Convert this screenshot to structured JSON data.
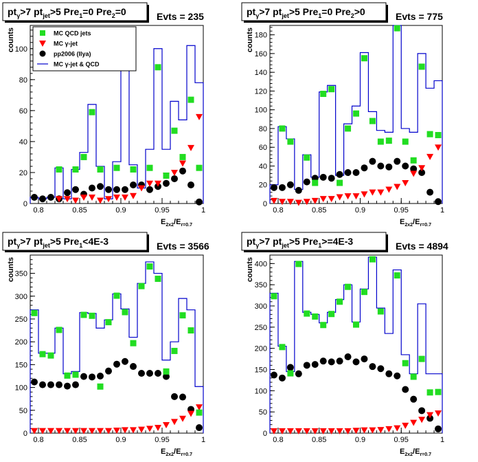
{
  "chart_data": [
    {
      "type": "scatter",
      "title_parts": {
        "pt": "pt",
        "g": "γ",
        "gt": ">7",
        "pt2": "pt",
        "jet": "jet",
        "cut": ">5 Pre",
        "i1": "1",
        "eq1": "=0 Pre",
        "i2": "2",
        "eq2": "=0"
      },
      "evts": "Evts = 235",
      "ylabel": "counts",
      "xlabel": {
        "main": "E",
        "sub1": "2x2",
        "slash": "/E",
        "sub2": "r=0.7"
      },
      "xlim": [
        0.79,
        1.0
      ],
      "ylim": [
        0,
        115
      ],
      "xticks": [
        "0.8",
        "0.85",
        "0.9",
        "0.95",
        "1"
      ],
      "yticks": [
        "0",
        "20",
        "40",
        "60",
        "80",
        "100"
      ],
      "legend": [
        {
          "label": "MC QCD jets"
        },
        {
          "label": "MC γ-jet"
        },
        {
          "label": "pp2006 (Ilya)"
        },
        {
          "label": "MC γ-jet & QCD"
        }
      ],
      "legend_placement": "top-left",
      "bin_edges": [
        0.79,
        0.8,
        0.81,
        0.82,
        0.83,
        0.84,
        0.85,
        0.86,
        0.87,
        0.88,
        0.89,
        0.9,
        0.91,
        0.92,
        0.93,
        0.94,
        0.95,
        0.96,
        0.97,
        0.98,
        0.99,
        1.0
      ],
      "x": [
        0.795,
        0.805,
        0.815,
        0.825,
        0.835,
        0.845,
        0.855,
        0.865,
        0.875,
        0.885,
        0.895,
        0.905,
        0.915,
        0.925,
        0.935,
        0.945,
        0.955,
        0.965,
        0.975,
        0.985,
        0.995
      ],
      "series": [
        {
          "values": [
            0,
            0,
            0,
            22,
            0,
            22,
            30,
            59,
            22,
            0,
            23,
            103,
            22,
            0,
            23,
            88,
            18,
            47,
            30,
            67,
            23
          ]
        },
        {
          "values": [
            0,
            0,
            0,
            3,
            3,
            2,
            4,
            4,
            2,
            3,
            4,
            4,
            5,
            10,
            13,
            13,
            18,
            20,
            26,
            36,
            56
          ]
        },
        {
          "values": [
            4,
            3,
            4,
            3,
            7,
            9,
            6,
            10,
            11,
            9,
            9,
            9,
            12,
            12,
            9,
            11,
            13,
            16,
            21,
            12,
            1
          ]
        },
        {
          "values": [
            4,
            3,
            4,
            23,
            3,
            22,
            33,
            64,
            24,
            3,
            27,
            108,
            25,
            10,
            35,
            100,
            35,
            66,
            54,
            102,
            78
          ]
        }
      ]
    },
    {
      "type": "scatter",
      "title_parts": {
        "pt": "pt",
        "g": "γ",
        "gt": ">7",
        "pt2": "pt",
        "jet": "jet",
        "cut": ">5 Pre",
        "i1": "1",
        "eq1": "=0 Pre",
        "i2": "2",
        "eq2": ">0"
      },
      "evts": "Evts = 775",
      "ylabel": "counts",
      "xlabel": {
        "main": "E",
        "sub1": "2x2",
        "slash": "/E",
        "sub2": "r=0.7"
      },
      "xlim": [
        0.79,
        1.0
      ],
      "ylim": [
        0,
        190
      ],
      "xticks": [
        "0.8",
        "0.85",
        "0.9",
        "0.95",
        "1"
      ],
      "yticks": [
        "0",
        "20",
        "40",
        "60",
        "80",
        "100",
        "120",
        "140",
        "160",
        "180"
      ],
      "bin_edges": [
        0.79,
        0.8,
        0.81,
        0.82,
        0.83,
        0.84,
        0.85,
        0.86,
        0.87,
        0.88,
        0.89,
        0.9,
        0.91,
        0.92,
        0.93,
        0.94,
        0.95,
        0.96,
        0.97,
        0.98,
        0.99,
        1.0
      ],
      "x": [
        0.795,
        0.805,
        0.815,
        0.825,
        0.835,
        0.845,
        0.855,
        0.865,
        0.875,
        0.885,
        0.895,
        0.905,
        0.915,
        0.925,
        0.935,
        0.945,
        0.955,
        0.965,
        0.975,
        0.985,
        0.995
      ],
      "series": [
        {
          "values": [
            0,
            80,
            66,
            0,
            49,
            22,
            117,
            122,
            22,
            80,
            96,
            155,
            88,
            66,
            67,
            187,
            66,
            46,
            146,
            74,
            73
          ]
        },
        {
          "values": [
            3,
            2,
            2,
            1,
            2,
            3,
            5,
            5,
            7,
            8,
            8,
            10,
            12,
            12,
            15,
            18,
            22,
            32,
            38,
            50,
            60
          ]
        },
        {
          "values": [
            17,
            17,
            20,
            14,
            23,
            27,
            28,
            27,
            31,
            33,
            33,
            38,
            45,
            40,
            39,
            45,
            40,
            37,
            33,
            12,
            2
          ]
        },
        {
          "values": [
            20,
            82,
            69,
            15,
            52,
            28,
            119,
            126,
            30,
            85,
            104,
            161,
            98,
            78,
            76,
            200,
            80,
            76,
            160,
            123,
            131
          ]
        }
      ]
    },
    {
      "type": "scatter",
      "title_parts": {
        "pt": "pt",
        "g": "γ",
        "gt": ">7",
        "pt2": "pt",
        "jet": "jet",
        "cut": ">5 Pre",
        "i1": "1",
        "eq1": "<4E-3",
        "i2": "",
        "eq2": ""
      },
      "evts": "Evts = 3566",
      "ylabel": "counts",
      "xlabel": {
        "main": "E",
        "sub1": "2x2",
        "slash": "/E",
        "sub2": "r=0.7"
      },
      "xlim": [
        0.79,
        1.0
      ],
      "ylim": [
        0,
        390
      ],
      "xticks": [
        "0.8",
        "0.85",
        "0.9",
        "0.95",
        "1"
      ],
      "yticks": [
        "0",
        "50",
        "100",
        "150",
        "200",
        "250",
        "300",
        "350"
      ],
      "bin_edges": [
        0.79,
        0.8,
        0.81,
        0.82,
        0.83,
        0.84,
        0.85,
        0.86,
        0.87,
        0.88,
        0.89,
        0.9,
        0.91,
        0.92,
        0.93,
        0.94,
        0.95,
        0.96,
        0.97,
        0.98,
        0.99,
        1.0
      ],
      "x": [
        0.795,
        0.805,
        0.815,
        0.825,
        0.835,
        0.845,
        0.855,
        0.865,
        0.875,
        0.885,
        0.895,
        0.905,
        0.915,
        0.925,
        0.935,
        0.945,
        0.955,
        0.965,
        0.975,
        0.985,
        0.995
      ],
      "series": [
        {
          "values": [
            263,
            173,
            170,
            226,
            126,
            128,
            259,
            257,
            102,
            243,
            301,
            265,
            197,
            322,
            365,
            338,
            135,
            180,
            258,
            225,
            45
          ]
        },
        {
          "values": [
            5,
            5,
            5,
            5,
            5,
            5,
            5,
            5,
            5,
            5,
            6,
            7,
            7,
            8,
            10,
            12,
            18,
            25,
            32,
            43,
            57
          ]
        },
        {
          "values": [
            112,
            106,
            106,
            106,
            103,
            106,
            124,
            123,
            125,
            136,
            151,
            157,
            146,
            131,
            131,
            131,
            124,
            80,
            79,
            52,
            12
          ]
        },
        {
          "values": [
            270,
            175,
            175,
            230,
            130,
            135,
            264,
            262,
            230,
            248,
            305,
            272,
            210,
            328,
            375,
            350,
            160,
            200,
            295,
            270,
            102
          ]
        }
      ]
    },
    {
      "type": "scatter",
      "title_parts": {
        "pt": "pt",
        "g": "γ",
        "gt": ">7",
        "pt2": "pt",
        "jet": "jet",
        "cut": ">5 Pre",
        "i1": "1",
        "eq1": ">=4E-3",
        "i2": "",
        "eq2": ""
      },
      "evts": "Evts = 4894",
      "ylabel": "counts",
      "xlabel": {
        "main": "E",
        "sub1": "2x2",
        "slash": "/E",
        "sub2": "r=0.7"
      },
      "xlim": [
        0.79,
        1.0
      ],
      "ylim": [
        0,
        420
      ],
      "xticks": [
        "0.8",
        "0.85",
        "0.9",
        "0.95",
        "1"
      ],
      "yticks": [
        "0",
        "50",
        "100",
        "150",
        "200",
        "250",
        "300",
        "350",
        "400"
      ],
      "bin_edges": [
        0.79,
        0.8,
        0.81,
        0.82,
        0.83,
        0.84,
        0.85,
        0.86,
        0.87,
        0.88,
        0.89,
        0.9,
        0.91,
        0.92,
        0.93,
        0.94,
        0.95,
        0.96,
        0.97,
        0.98,
        0.99,
        1.0
      ],
      "x": [
        0.795,
        0.805,
        0.815,
        0.825,
        0.835,
        0.845,
        0.855,
        0.865,
        0.875,
        0.885,
        0.895,
        0.905,
        0.915,
        0.925,
        0.935,
        0.945,
        0.955,
        0.965,
        0.975,
        0.985,
        0.995
      ],
      "series": [
        {
          "values": [
            323,
            203,
            141,
            399,
            282,
            275,
            255,
            281,
            310,
            345,
            256,
            333,
            410,
            287,
            0,
            372,
            165,
            133,
            175,
            96,
            97
          ]
        },
        {
          "values": [
            5,
            5,
            5,
            5,
            5,
            5,
            5,
            5,
            5,
            5,
            6,
            7,
            7,
            8,
            10,
            12,
            18,
            25,
            32,
            43,
            47
          ]
        },
        {
          "values": [
            137,
            130,
            155,
            140,
            160,
            162,
            170,
            168,
            170,
            180,
            168,
            175,
            157,
            152,
            140,
            135,
            103,
            80,
            53,
            35,
            10
          ]
        },
        {
          "values": [
            330,
            205,
            145,
            405,
            285,
            280,
            260,
            285,
            315,
            350,
            262,
            340,
            415,
            295,
            235,
            385,
            185,
            140,
            305,
            140,
            140
          ]
        }
      ]
    }
  ],
  "colors": {
    "qcd": "#22dd22",
    "gjet": "#ff0000",
    "data": "#000000",
    "sum": "#0000cc"
  }
}
